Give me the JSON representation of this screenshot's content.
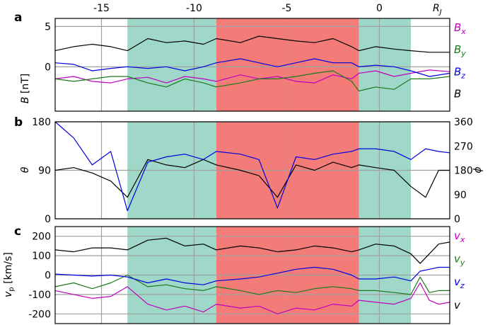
{
  "top_axis": {
    "ticks": [
      -15,
      -10,
      -5,
      0
    ],
    "tick_labels": [
      "-15",
      "-10",
      "-5",
      "0"
    ],
    "unit_label": "R",
    "unit_subscript": "J",
    "xlim": [
      -17.5,
      3.8
    ]
  },
  "shading": [
    {
      "x0": -13.6,
      "x1": -8.8,
      "color": "#9fd8c8"
    },
    {
      "x0": -8.8,
      "x1": -1.1,
      "color": "#f47c78"
    },
    {
      "x0": -1.1,
      "x1": 1.7,
      "color": "#9fd8c8"
    }
  ],
  "panels": {
    "a": {
      "letter": "a",
      "ylabel_var": "B",
      "ylabel_unit": " [nT]",
      "yticks": [
        "5",
        "0"
      ],
      "ylim": [
        -5.5,
        6
      ]
    },
    "b": {
      "letter": "b",
      "ylabel_left": "θ",
      "ylabel_right": "ϕ",
      "yticks_left": [
        "180",
        "90",
        "0"
      ],
      "yticks_right": [
        "360",
        "270",
        "180",
        "90",
        "0"
      ],
      "ylim_left": [
        0,
        180
      ],
      "ylim_right": [
        0,
        360
      ]
    },
    "c": {
      "letter": "c",
      "ylabel_var": "v",
      "ylabel_sub": "p",
      "ylabel_unit": " [km/s]",
      "yticks": [
        "200",
        "100",
        "0",
        "-100",
        "-200"
      ],
      "ylim": [
        -250,
        250
      ]
    }
  },
  "colors": {
    "x": "#c000c0",
    "y": "#1a7a1a",
    "z": "#0000e0",
    "mag": "#000000"
  },
  "chart_data": [
    {
      "panel": "a",
      "type": "line",
      "ylabel": "B [nT]",
      "xlim": [
        -17.5,
        3.8
      ],
      "ylim": [
        -5.5,
        6
      ],
      "legend": [
        "Bx",
        "By",
        "Bz",
        "B"
      ],
      "x": [
        -17.5,
        -16.5,
        -15.5,
        -14.5,
        -13.6,
        -12.5,
        -11.5,
        -10.5,
        -9.5,
        -8.8,
        -7.5,
        -6.5,
        -5.5,
        -4.5,
        -3.5,
        -2.5,
        -1.5,
        -1.1,
        -0.2,
        0.8,
        1.7,
        2.7,
        3.8
      ],
      "series": [
        {
          "name": "Bx",
          "color": "#c000c0",
          "values": [
            -1.5,
            -1.2,
            -1.8,
            -2.0,
            -1.5,
            -1.3,
            -2.0,
            -1.2,
            -1.5,
            -1.8,
            -1.0,
            -1.5,
            -1.2,
            -1.8,
            -2.0,
            -1.0,
            -1.5,
            -0.8,
            -0.5,
            -1.2,
            -0.8,
            -0.4,
            -0.6
          ]
        },
        {
          "name": "By",
          "color": "#1a7a1a",
          "values": [
            -1.5,
            -1.8,
            -1.5,
            -1.2,
            -1.2,
            -2.0,
            -2.5,
            -1.5,
            -2.0,
            -2.5,
            -2.0,
            -1.5,
            -1.5,
            -1.2,
            -0.8,
            -0.5,
            -1.8,
            -3.0,
            -2.5,
            -2.8,
            -1.5,
            -1.5,
            -1.2
          ]
        },
        {
          "name": "Bz",
          "color": "#0000e0",
          "values": [
            0.5,
            0.3,
            -0.5,
            -0.2,
            0.0,
            -0.2,
            0.0,
            -0.5,
            0.0,
            0.5,
            1.0,
            0.5,
            0.0,
            0.5,
            1.0,
            0.5,
            0.5,
            0.0,
            0.2,
            0.0,
            -0.5,
            -1.2,
            -0.8
          ]
        },
        {
          "name": "B",
          "color": "#000000",
          "values": [
            2.0,
            2.5,
            2.8,
            2.5,
            2.0,
            3.5,
            3.0,
            3.2,
            2.8,
            3.5,
            3.0,
            3.8,
            3.5,
            3.2,
            3.0,
            3.5,
            2.5,
            2.0,
            2.5,
            2.2,
            2.0,
            1.8,
            1.8
          ]
        }
      ]
    },
    {
      "panel": "b",
      "type": "line",
      "ylabel": "θ",
      "ylabel_right": "ϕ",
      "xlim": [
        -17.5,
        3.8
      ],
      "ylim": [
        0,
        180
      ],
      "ylim_right": [
        0,
        360
      ],
      "x": [
        -17.5,
        -16.5,
        -15.5,
        -14.5,
        -13.6,
        -12.5,
        -11.5,
        -10.5,
        -9.5,
        -8.8,
        -7.5,
        -6.5,
        -5.5,
        -4.5,
        -3.5,
        -2.5,
        -1.5,
        -1.1,
        -0.2,
        0.8,
        1.7,
        2.5,
        3.2,
        3.8
      ],
      "series": [
        {
          "name": "θ",
          "color": "#000000",
          "axis": "left",
          "values": [
            90,
            95,
            85,
            70,
            40,
            110,
            100,
            95,
            110,
            100,
            90,
            80,
            40,
            100,
            90,
            105,
            95,
            100,
            95,
            90,
            60,
            40,
            90,
            90
          ]
        },
        {
          "name": "ϕ",
          "color": "#0000e0",
          "axis": "right",
          "values": [
            360,
            300,
            200,
            250,
            30,
            210,
            230,
            240,
            220,
            250,
            240,
            220,
            40,
            230,
            220,
            240,
            250,
            260,
            260,
            250,
            220,
            260,
            250,
            245
          ]
        }
      ]
    },
    {
      "panel": "c",
      "type": "line",
      "ylabel": "vp [km/s]",
      "xlim": [
        -17.5,
        3.8
      ],
      "ylim": [
        -250,
        250
      ],
      "legend": [
        "vx",
        "vy",
        "vz",
        "v"
      ],
      "x": [
        -17.5,
        -16.5,
        -15.5,
        -14.5,
        -13.6,
        -12.5,
        -11.5,
        -10.5,
        -9.5,
        -8.8,
        -7.5,
        -6.5,
        -5.5,
        -4.5,
        -3.5,
        -2.5,
        -1.5,
        -1.1,
        -0.2,
        0.8,
        1.7,
        2.2,
        2.7,
        3.2,
        3.8
      ],
      "series": [
        {
          "name": "vx",
          "color": "#c000c0",
          "values": [
            -80,
            -100,
            -120,
            -110,
            -60,
            -150,
            -180,
            -160,
            -190,
            -150,
            -170,
            -160,
            -200,
            -170,
            -180,
            -150,
            -160,
            -130,
            -140,
            -150,
            -120,
            -40,
            -130,
            -150,
            -140
          ]
        },
        {
          "name": "vy",
          "color": "#1a7a1a",
          "values": [
            -60,
            -40,
            -70,
            -40,
            0,
            -60,
            -50,
            -70,
            -80,
            -60,
            -80,
            -100,
            -80,
            -90,
            -70,
            -60,
            -70,
            -80,
            -80,
            -90,
            -100,
            -10,
            -90,
            -80,
            -80
          ]
        },
        {
          "name": "vz",
          "color": "#0000e0",
          "values": [
            5,
            0,
            -5,
            0,
            -10,
            -40,
            -20,
            -40,
            -50,
            -30,
            -20,
            -10,
            10,
            30,
            40,
            30,
            0,
            -20,
            -20,
            -10,
            -30,
            20,
            30,
            40,
            40
          ]
        },
        {
          "name": "v",
          "color": "#000000",
          "values": [
            130,
            120,
            140,
            140,
            130,
            180,
            190,
            150,
            160,
            130,
            150,
            140,
            120,
            130,
            150,
            140,
            120,
            130,
            160,
            150,
            110,
            60,
            110,
            160,
            170
          ]
        }
      ]
    }
  ]
}
